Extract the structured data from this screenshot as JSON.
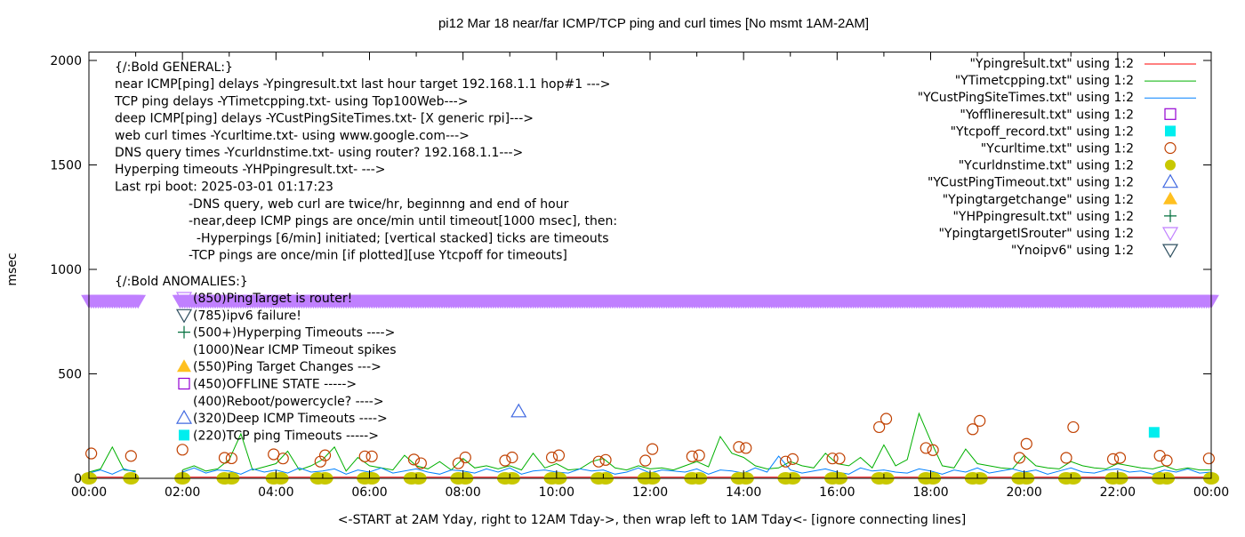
{
  "chart_data": {
    "type": "line",
    "title": "pi12 Mar 18  near/far ICMP/TCP ping and curl times [No msmt 1AM-2AM]",
    "xlabel": "<-START at 2AM Yday, right to 12AM Tday->, then wrap left to 1AM Tday<- [ignore connecting lines]",
    "ylabel": "msec",
    "xlim_hours": [
      0,
      24
    ],
    "ylim": [
      0,
      2040
    ],
    "x_ticks": [
      "00:00",
      "02:00",
      "04:00",
      "06:00",
      "08:00",
      "10:00",
      "12:00",
      "14:00",
      "16:00",
      "18:00",
      "20:00",
      "22:00",
      "00:00"
    ],
    "y_ticks": [
      0,
      500,
      1000,
      1500,
      2000
    ],
    "grid": false,
    "legend_position": "top-right",
    "colors": {
      "near_icmp": "#ff0000",
      "tcp": "#00b000",
      "deep_icmp": "#0080ff",
      "offline": "#9400d3",
      "tcpoff": "#00eeee",
      "curl": "#c04000",
      "dns": "#c8c800",
      "deep_timeout": "#4169e1",
      "target_change": "#ffc020",
      "hyperping": "#006f3c",
      "is_router": "#c080ff",
      "noipv6": "#2f5060"
    },
    "legend": [
      {
        "label": "\"Ypingresult.txt\" using 1:2",
        "kind": "line",
        "color_key": "near_icmp"
      },
      {
        "label": "\"YTimetcpping.txt\" using 1:2",
        "kind": "line",
        "color_key": "tcp"
      },
      {
        "label": "\"YCustPingSiteTimes.txt\" using 1:2",
        "kind": "line",
        "color_key": "deep_icmp"
      },
      {
        "label": "\"Yofflineresult.txt\" using 1:2",
        "kind": "square-open",
        "color_key": "offline"
      },
      {
        "label": "\"Ytcpoff_record.txt\" using 1:2",
        "kind": "square-filled",
        "color_key": "tcpoff"
      },
      {
        "label": "\"Ycurltime.txt\" using 1:2",
        "kind": "circle-open",
        "color_key": "curl"
      },
      {
        "label": "\"Ycurldnstime.txt\" using 1:2",
        "kind": "circle-filled",
        "color_key": "dns"
      },
      {
        "label": "\"YCustPingTimeout.txt\" using 1:2",
        "kind": "triangle-up-open",
        "color_key": "deep_timeout"
      },
      {
        "label": "\"Ypingtargetchange\" using 1:2",
        "kind": "triangle-up-filled",
        "color_key": "target_change"
      },
      {
        "label": "\"YHPpingresult.txt\" using 1:2",
        "kind": "plus",
        "color_key": "hyperping"
      },
      {
        "label": "\"YpingtargetISrouter\" using 1:2",
        "kind": "triangle-down-open",
        "color_key": "is_router"
      },
      {
        "label": "\"Ynoipv6\" using 1:2",
        "kind": "triangle-down-open",
        "color_key": "noipv6"
      }
    ],
    "line_series_step_hours": 0.25,
    "series": [
      {
        "key": "near_icmp",
        "values": [
          5,
          5,
          5,
          5,
          5,
          null,
          null,
          null,
          5,
          5,
          5,
          5,
          5,
          5,
          5,
          5,
          5,
          5,
          5,
          5,
          5,
          5,
          5,
          5,
          5,
          5,
          5,
          5,
          5,
          5,
          5,
          5,
          5,
          5,
          5,
          5,
          5,
          5,
          5,
          5,
          5,
          5,
          5,
          5,
          5,
          5,
          5,
          5,
          5,
          5,
          5,
          5,
          5,
          5,
          5,
          5,
          5,
          5,
          5,
          5,
          5,
          5,
          5,
          5,
          5,
          5,
          5,
          5,
          5,
          5,
          5,
          5,
          5,
          5,
          5,
          5,
          5,
          5,
          5,
          5,
          5,
          5,
          5,
          5,
          5,
          5,
          5,
          5,
          5,
          5,
          5,
          5,
          5,
          5,
          5,
          5,
          5
        ]
      },
      {
        "key": "tcp",
        "values": [
          30,
          45,
          150,
          40,
          35,
          null,
          null,
          null,
          40,
          60,
          35,
          45,
          90,
          213,
          40,
          55,
          70,
          130,
          40,
          60,
          90,
          150,
          35,
          100,
          60,
          50,
          40,
          110,
          60,
          45,
          80,
          40,
          95,
          50,
          60,
          45,
          60,
          40,
          120,
          50,
          70,
          40,
          45,
          80,
          95,
          50,
          40,
          60,
          45,
          50,
          40,
          60,
          80,
          55,
          200,
          120,
          100,
          60,
          45,
          50,
          80,
          60,
          50,
          120,
          70,
          60,
          100,
          50,
          160,
          60,
          90,
          310,
          180,
          60,
          50,
          140,
          70,
          60,
          50,
          45,
          110,
          60,
          50,
          45,
          80,
          60,
          50,
          45,
          70,
          60,
          50,
          45,
          60,
          40,
          50,
          40,
          40
        ]
      },
      {
        "key": "deep_icmp",
        "values": [
          25,
          40,
          20,
          45,
          30,
          null,
          null,
          null,
          30,
          50,
          25,
          40,
          35,
          20,
          45,
          30,
          40,
          25,
          50,
          30,
          35,
          45,
          20,
          40,
          30,
          50,
          25,
          35,
          45,
          30,
          20,
          40,
          35,
          25,
          45,
          30,
          50,
          20,
          35,
          40,
          30,
          25,
          45,
          35,
          40,
          20,
          30,
          50,
          25,
          40,
          35,
          30,
          45,
          20,
          40,
          35,
          25,
          50,
          30,
          106,
          40,
          25,
          35,
          45,
          30,
          20,
          50,
          35,
          40,
          30,
          25,
          45,
          35,
          20,
          40,
          30,
          50,
          25,
          35,
          45,
          30,
          40,
          20,
          35,
          50,
          30,
          25,
          40,
          45,
          30,
          35,
          20,
          40,
          30,
          45,
          25,
          30
        ]
      }
    ],
    "curl_points": [
      [
        0.05,
        119
      ],
      [
        0.9,
        107
      ],
      [
        2.0,
        137
      ],
      [
        2.9,
        98
      ],
      [
        3.05,
        96
      ],
      [
        3.95,
        115
      ],
      [
        4.15,
        95
      ],
      [
        4.95,
        80
      ],
      [
        5.05,
        110
      ],
      [
        5.9,
        105
      ],
      [
        6.05,
        105
      ],
      [
        6.95,
        90
      ],
      [
        7.1,
        72
      ],
      [
        7.9,
        72
      ],
      [
        8.05,
        100
      ],
      [
        8.9,
        85
      ],
      [
        9.05,
        100
      ],
      [
        9.9,
        100
      ],
      [
        10.05,
        110
      ],
      [
        10.9,
        80
      ],
      [
        11.05,
        88
      ],
      [
        11.9,
        85
      ],
      [
        12.05,
        140
      ],
      [
        12.9,
        105
      ],
      [
        13.05,
        110
      ],
      [
        13.9,
        150
      ],
      [
        14.05,
        145
      ],
      [
        14.9,
        80
      ],
      [
        15.05,
        92
      ],
      [
        15.9,
        95
      ],
      [
        16.05,
        95
      ],
      [
        16.9,
        245
      ],
      [
        17.05,
        285
      ],
      [
        17.9,
        145
      ],
      [
        18.05,
        135
      ],
      [
        18.9,
        235
      ],
      [
        19.05,
        275
      ],
      [
        19.9,
        98
      ],
      [
        20.05,
        165
      ],
      [
        20.9,
        98
      ],
      [
        21.05,
        245
      ],
      [
        21.9,
        92
      ],
      [
        22.05,
        98
      ],
      [
        22.9,
        108
      ],
      [
        23.05,
        85
      ],
      [
        23.95,
        95
      ]
    ],
    "dns_points": [
      [
        0.0,
        0
      ],
      [
        0.9,
        0
      ],
      [
        2.0,
        0
      ],
      [
        2.9,
        0
      ],
      [
        3.05,
        0
      ],
      [
        3.95,
        0
      ],
      [
        4.1,
        0
      ],
      [
        4.9,
        0
      ],
      [
        5.05,
        0
      ],
      [
        5.9,
        0
      ],
      [
        6.05,
        0
      ],
      [
        6.9,
        0
      ],
      [
        7.05,
        0
      ],
      [
        7.9,
        0
      ],
      [
        8.05,
        0
      ],
      [
        8.9,
        0
      ],
      [
        9.05,
        0
      ],
      [
        9.9,
        0
      ],
      [
        10.05,
        0
      ],
      [
        10.9,
        0
      ],
      [
        11.05,
        0
      ],
      [
        11.9,
        0
      ],
      [
        12.05,
        0
      ],
      [
        12.9,
        0
      ],
      [
        13.05,
        0
      ],
      [
        13.9,
        0
      ],
      [
        14.05,
        0
      ],
      [
        14.9,
        0
      ],
      [
        15.05,
        0
      ],
      [
        15.9,
        0
      ],
      [
        16.05,
        0
      ],
      [
        16.9,
        0
      ],
      [
        17.05,
        0
      ],
      [
        17.9,
        0
      ],
      [
        18.05,
        0
      ],
      [
        18.9,
        0
      ],
      [
        19.05,
        0
      ],
      [
        19.9,
        0
      ],
      [
        20.05,
        0
      ],
      [
        20.9,
        0
      ],
      [
        21.05,
        0
      ],
      [
        21.9,
        0
      ],
      [
        22.05,
        0
      ],
      [
        22.9,
        0
      ],
      [
        23.05,
        0
      ],
      [
        24.0,
        0
      ]
    ],
    "deep_timeout_points": [
      [
        9.19,
        320
      ]
    ],
    "tcpoff_points": [
      [
        22.78,
        220
      ]
    ],
    "is_router_value": 850,
    "is_router_ranges_hours": [
      [
        0,
        1.05
      ],
      [
        1.95,
        24
      ]
    ],
    "annotations_general": [
      "{/:Bold GENERAL:}",
      "near ICMP[ping] delays -Ypingresult.txt last hour target 192.168.1.1 hop#1 --->",
      "TCP ping delays -YTimetcpping.txt- using Top100Web--->",
      "deep ICMP[ping] delays -YCustPingSiteTimes.txt- [X generic rpi]--->",
      "web curl times -Ycurltime.txt- using www.google.com--->",
      "DNS query times -Ycurldnstime.txt- using router? 192.168.1.1--->",
      "Hyperping timeouts -YHPpingresult.txt- --->",
      "Last rpi boot: 2025-03-01 01:17:23"
    ],
    "annotations_notes": [
      "-DNS query, web curl are twice/hr, beginnng and end of hour",
      "-near,deep ICMP pings are once/min until timeout[1000 msec], then:",
      "  -Hyperpings [6/min] initiated; [vertical stacked] ticks are timeouts",
      "-TCP pings are once/min [if plotted][use Ytcpoff for timeouts]"
    ],
    "anomalies_title": "{/:Bold ANOMALIES:}",
    "anomalies": [
      {
        "text": "(850)PingTarget is router!",
        "symbol": "triangle-down-open",
        "color_key": "is_router"
      },
      {
        "text": "(785)ipv6 failure!",
        "symbol": "triangle-down-open",
        "color_key": "noipv6"
      },
      {
        "text": "(500+)Hyperping Timeouts ---->",
        "symbol": "plus",
        "color_key": "hyperping"
      },
      {
        "text": "(1000)Near ICMP Timeout spikes",
        "symbol": "none",
        "color_key": ""
      },
      {
        "text": "(550)Ping Target Changes --->",
        "symbol": "triangle-up-filled",
        "color_key": "target_change"
      },
      {
        "text": "(450)OFFLINE STATE ----->",
        "symbol": "square-open",
        "color_key": "offline"
      },
      {
        "text": "(400)Reboot/powercycle? ---->",
        "symbol": "none",
        "color_key": ""
      },
      {
        "text": "(320)Deep ICMP Timeouts ---->",
        "symbol": "triangle-up-open",
        "color_key": "deep_timeout"
      },
      {
        "text": "(220)TCP ping Timeouts ----->",
        "symbol": "square-filled",
        "color_key": "tcpoff"
      }
    ]
  }
}
